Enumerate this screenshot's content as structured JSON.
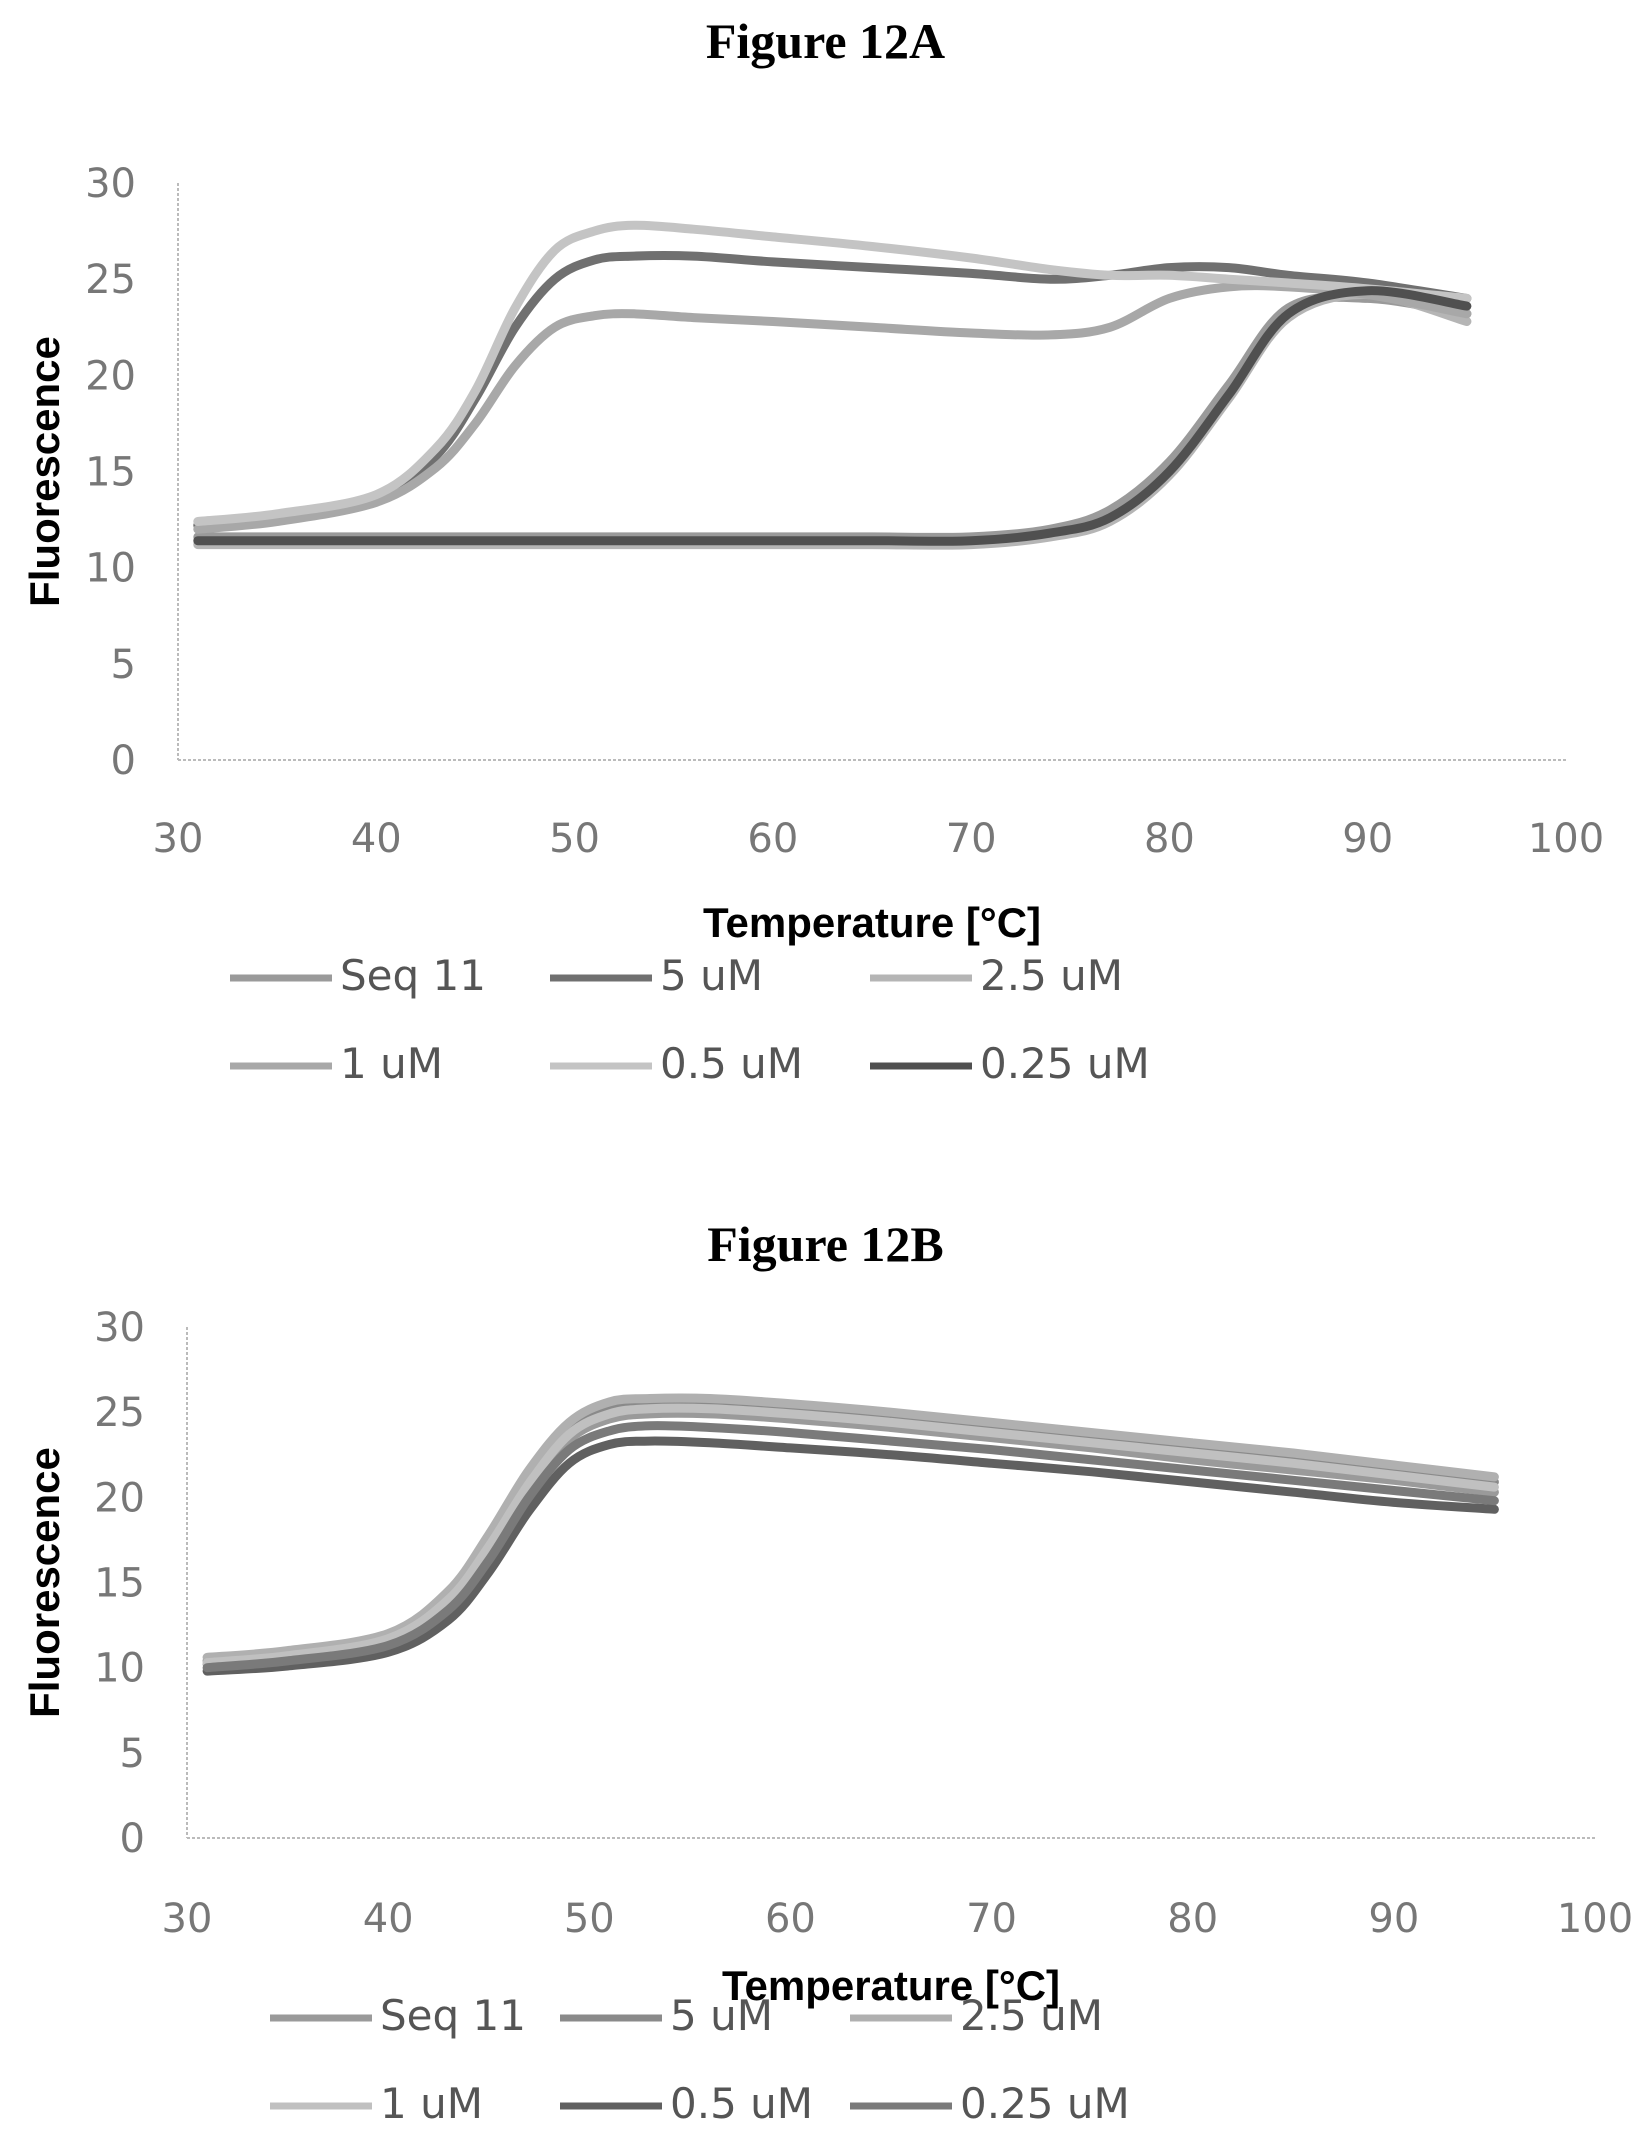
{
  "chart_data": [
    {
      "type": "line",
      "title": "Figure 12A",
      "xlabel": "Temperature [°C]",
      "ylabel": "Fluorescence",
      "xlim": [
        30,
        100
      ],
      "ylim": [
        0,
        30
      ],
      "xticks": [
        30,
        40,
        50,
        60,
        70,
        80,
        90,
        100
      ],
      "yticks": [
        0,
        5,
        10,
        15,
        20,
        25,
        30
      ],
      "grid": false,
      "legend_position": "bottom",
      "series": [
        {
          "name": "Seq 11",
          "color": "#9a9a9a",
          "x": [
            31,
            35,
            40,
            43,
            45,
            47,
            49,
            51,
            53,
            56,
            60,
            65,
            70,
            74,
            77,
            80,
            83,
            86,
            90,
            95
          ],
          "y": [
            11.6,
            11.6,
            11.6,
            11.6,
            11.6,
            11.6,
            11.6,
            11.6,
            11.6,
            11.6,
            11.6,
            11.6,
            11.6,
            12.0,
            13.0,
            15.5,
            19.5,
            23.5,
            24.0,
            23.2
          ]
        },
        {
          "name": "5 uM",
          "color": "#707070",
          "x": [
            31,
            35,
            40,
            43,
            45,
            47,
            49,
            51,
            53,
            56,
            60,
            65,
            70,
            74,
            77,
            80,
            83,
            86,
            90,
            95
          ],
          "y": [
            12.2,
            12.6,
            13.6,
            15.8,
            18.8,
            22.5,
            25.0,
            26.0,
            26.2,
            26.2,
            25.9,
            25.6,
            25.3,
            25.0,
            25.2,
            25.6,
            25.6,
            25.2,
            24.8,
            24.0
          ]
        },
        {
          "name": "2.5 uM",
          "color": "#b5b5b5",
          "x": [
            31,
            35,
            40,
            43,
            45,
            47,
            49,
            51,
            53,
            56,
            60,
            65,
            70,
            74,
            77,
            80,
            83,
            86,
            90,
            95
          ],
          "y": [
            11.2,
            11.2,
            11.2,
            11.2,
            11.2,
            11.2,
            11.2,
            11.2,
            11.2,
            11.2,
            11.2,
            11.2,
            11.2,
            11.6,
            12.4,
            14.8,
            18.8,
            23.0,
            24.2,
            22.8
          ]
        },
        {
          "name": "1 uM",
          "color": "#a8a8a8",
          "x": [
            31,
            35,
            40,
            43,
            45,
            47,
            49,
            51,
            53,
            56,
            60,
            65,
            70,
            74,
            77,
            80,
            83,
            86,
            90,
            95
          ],
          "y": [
            12.0,
            12.4,
            13.4,
            15.2,
            17.5,
            20.5,
            22.5,
            23.1,
            23.2,
            23.0,
            22.8,
            22.5,
            22.2,
            22.1,
            22.5,
            24.0,
            24.6,
            24.6,
            24.2,
            23.2
          ]
        },
        {
          "name": "0.5 uM",
          "color": "#c4c4c4",
          "x": [
            31,
            35,
            40,
            43,
            45,
            47,
            49,
            51,
            53,
            56,
            60,
            65,
            70,
            74,
            77,
            80,
            83,
            86,
            90,
            95
          ],
          "y": [
            12.4,
            12.8,
            13.8,
            16.2,
            19.2,
            23.5,
            26.5,
            27.5,
            27.8,
            27.6,
            27.2,
            26.7,
            26.1,
            25.5,
            25.2,
            25.2,
            25.0,
            24.8,
            24.5,
            24.0
          ]
        },
        {
          "name": "0.25 uM",
          "color": "#505050",
          "x": [
            31,
            35,
            40,
            43,
            45,
            47,
            49,
            51,
            53,
            56,
            60,
            65,
            70,
            74,
            77,
            80,
            83,
            86,
            90,
            95
          ],
          "y": [
            11.4,
            11.4,
            11.4,
            11.4,
            11.4,
            11.4,
            11.4,
            11.4,
            11.4,
            11.4,
            11.4,
            11.4,
            11.4,
            11.8,
            12.6,
            15.0,
            19.0,
            23.2,
            24.4,
            23.6
          ]
        }
      ],
      "legend": [
        "Seq 11",
        "5 uM",
        "2.5 uM",
        "1 uM",
        "0.5 uM",
        "0.25 uM"
      ]
    },
    {
      "type": "line",
      "title": "Figure 12B",
      "xlabel": "Temperature [°C]",
      "ylabel": "Fluorescence",
      "xlim": [
        30,
        100
      ],
      "ylim": [
        0,
        30
      ],
      "xticks": [
        30,
        40,
        50,
        60,
        70,
        80,
        90,
        100
      ],
      "yticks": [
        0,
        5,
        10,
        15,
        20,
        25,
        30
      ],
      "grid": false,
      "legend_position": "bottom",
      "series": [
        {
          "name": "Seq 11",
          "color": "#9a9a9a",
          "x": [
            31,
            35,
            40,
            43,
            45,
            47,
            49,
            51,
            53,
            56,
            60,
            65,
            70,
            75,
            80,
            85,
            90,
            95
          ],
          "y": [
            10.2,
            10.6,
            11.6,
            13.8,
            16.8,
            20.5,
            23.4,
            24.6,
            24.9,
            24.9,
            24.6,
            24.1,
            23.5,
            22.9,
            22.2,
            21.6,
            21.0,
            20.3
          ]
        },
        {
          "name": "5 uM",
          "color": "#8a8a8a",
          "x": [
            31,
            35,
            40,
            43,
            45,
            47,
            49,
            51,
            53,
            56,
            60,
            65,
            70,
            75,
            80,
            85,
            90,
            95
          ],
          "y": [
            10.4,
            10.8,
            11.8,
            14.2,
            17.4,
            21.2,
            24.0,
            25.2,
            25.5,
            25.5,
            25.2,
            24.7,
            24.1,
            23.5,
            22.9,
            22.3,
            21.6,
            20.9
          ]
        },
        {
          "name": "2.5 uM",
          "color": "#b0b0b0",
          "x": [
            31,
            35,
            40,
            43,
            45,
            47,
            49,
            51,
            53,
            56,
            60,
            65,
            70,
            75,
            80,
            85,
            90,
            95
          ],
          "y": [
            10.6,
            11.0,
            12.0,
            14.5,
            17.8,
            21.6,
            24.4,
            25.6,
            25.8,
            25.8,
            25.5,
            25.0,
            24.4,
            23.8,
            23.2,
            22.6,
            21.9,
            21.2
          ]
        },
        {
          "name": "1 uM",
          "color": "#c0c0c0",
          "x": [
            31,
            35,
            40,
            43,
            45,
            47,
            49,
            51,
            53,
            56,
            60,
            65,
            70,
            75,
            80,
            85,
            90,
            95
          ],
          "y": [
            10.3,
            10.7,
            11.7,
            14.0,
            17.1,
            20.8,
            23.7,
            24.9,
            25.2,
            25.2,
            24.9,
            24.4,
            23.8,
            23.2,
            22.6,
            22.0,
            21.3,
            20.6
          ]
        },
        {
          "name": "0.5 uM",
          "color": "#606060",
          "x": [
            31,
            35,
            40,
            43,
            45,
            47,
            49,
            51,
            53,
            56,
            60,
            65,
            70,
            75,
            80,
            85,
            90,
            95
          ],
          "y": [
            9.8,
            10.1,
            10.9,
            12.8,
            15.6,
            19.2,
            22.0,
            23.1,
            23.3,
            23.2,
            22.9,
            22.5,
            22.0,
            21.5,
            20.9,
            20.3,
            19.7,
            19.3
          ]
        },
        {
          "name": "0.25 uM",
          "color": "#7a7a7a",
          "x": [
            31,
            35,
            40,
            43,
            45,
            47,
            49,
            51,
            53,
            56,
            60,
            65,
            70,
            75,
            80,
            85,
            90,
            95
          ],
          "y": [
            10.0,
            10.4,
            11.3,
            13.4,
            16.3,
            20.0,
            22.8,
            23.9,
            24.2,
            24.1,
            23.8,
            23.3,
            22.8,
            22.2,
            21.6,
            21.0,
            20.4,
            19.8
          ]
        }
      ],
      "legend": [
        "Seq 11",
        "5 uM",
        "2.5 uM",
        "1 uM",
        "0.5 uM",
        "0.25 uM"
      ]
    }
  ]
}
